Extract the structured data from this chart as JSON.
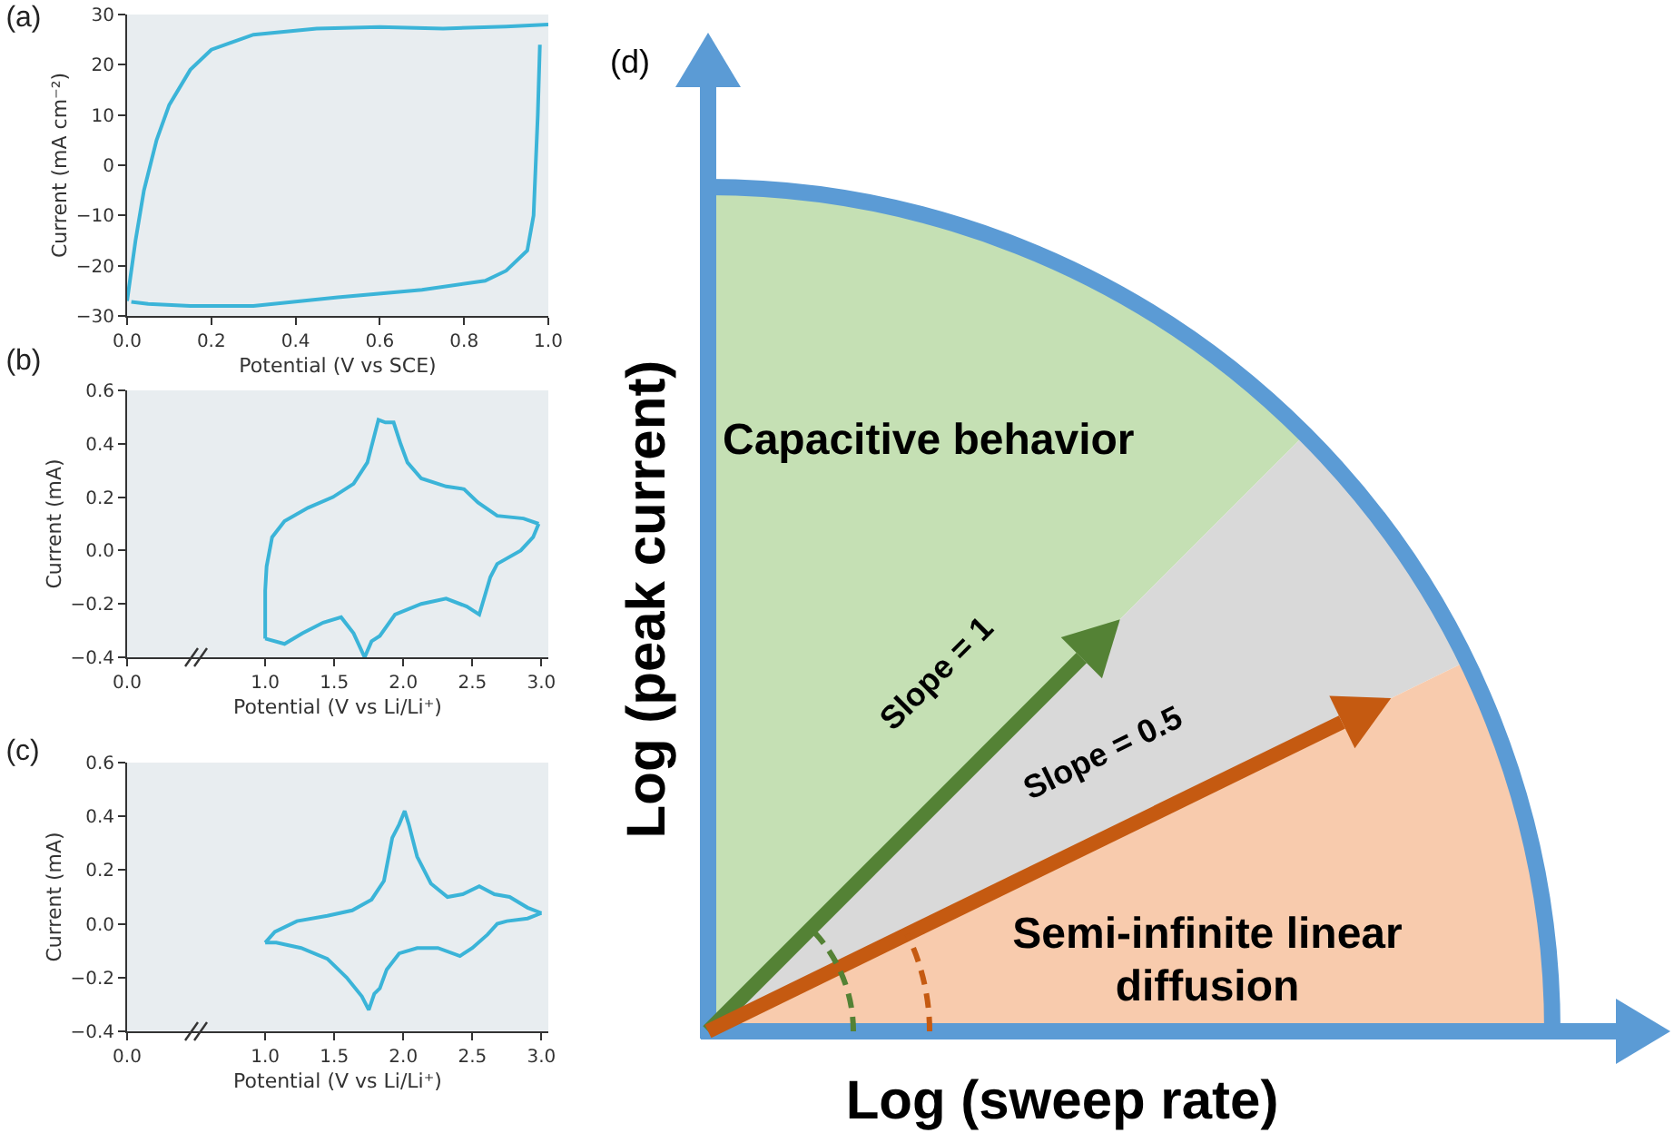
{
  "chart_data": [
    {
      "type": "line",
      "title": "(a)",
      "xlabel": "Potential (V vs SCE)",
      "ylabel": "Current (mA cm⁻²)",
      "grid": false,
      "legend": false,
      "marker": "none",
      "line_style": "solid",
      "xlim": [
        0,
        1
      ],
      "xticks": [
        {
          "value": 0,
          "label": "0.0"
        },
        {
          "value": 0.2,
          "label": "0.2"
        },
        {
          "value": 0.4,
          "label": "0.4"
        },
        {
          "value": 0.6,
          "label": "0.6"
        },
        {
          "value": 0.8,
          "label": "0.8"
        },
        {
          "value": 1,
          "label": "1.0"
        }
      ],
      "ylim": [
        -30,
        30
      ],
      "yticks": [
        {
          "value": -30,
          "label": "−30"
        },
        {
          "value": -20,
          "label": "−20"
        },
        {
          "value": -10,
          "label": "−10"
        },
        0,
        10,
        20,
        30
      ],
      "series": [
        {
          "color": "#3bb4d8",
          "x": [
            0,
            0.02,
            0.04,
            0.07,
            0.1,
            0.15,
            0.2,
            0.3,
            0.45,
            0.6,
            0.75,
            0.9,
            1.0
          ],
          "values": [
            -27,
            -15,
            -5,
            5,
            12,
            19,
            23,
            26,
            27.2,
            27.5,
            27.2,
            27.6,
            28
          ]
        },
        {
          "color": "#3bb4d8",
          "x": [
            0.98,
            0.975,
            0.97,
            0.965,
            0.95,
            0.9,
            0.85,
            0.7,
            0.5,
            0.3,
            0.15,
            0.05,
            0.01
          ],
          "values": [
            24,
            10,
            0,
            -10,
            -17,
            -21,
            -23,
            -24.8,
            -26.3,
            -28,
            -28,
            -27.6,
            -27.2
          ]
        }
      ]
    },
    {
      "type": "line",
      "title": "(b)",
      "xlabel": "Potential (V vs Li/Li⁺)",
      "ylabel": "Current (mA)",
      "grid": false,
      "legend": false,
      "marker": "none",
      "line_style": "solid",
      "xlim": [
        0,
        3.05
      ],
      "xticks": [
        {
          "value": 0,
          "label": "0.0"
        },
        {
          "value": 1,
          "label": "1.0"
        },
        {
          "value": 1.5,
          "label": "1.5"
        },
        {
          "value": 2,
          "label": "2.0"
        },
        {
          "value": 2.5,
          "label": "2.5"
        },
        {
          "value": 3,
          "label": "3.0"
        }
      ],
      "ylim": [
        -0.4,
        0.6
      ],
      "yticks": [
        {
          "value": -0.4,
          "label": "−0.4"
        },
        {
          "value": -0.2,
          "label": "−0.2"
        },
        {
          "value": 0,
          "label": "0.0"
        },
        {
          "value": 0.2,
          "label": "0.2"
        },
        {
          "value": 0.4,
          "label": "0.4"
        },
        {
          "value": 0.6,
          "label": "0.6"
        }
      ],
      "series": [
        {
          "color": "#3bb4d8",
          "x": [
            1.0,
            1.0,
            1.01,
            1.05,
            1.14,
            1.31,
            1.49,
            1.64,
            1.74,
            1.82,
            1.87,
            1.93,
            1.98,
            2.03,
            2.13,
            2.31,
            2.44,
            2.54,
            2.68,
            2.87,
            2.98
          ],
          "values": [
            -0.33,
            -0.15,
            -0.06,
            0.05,
            0.11,
            0.16,
            0.2,
            0.25,
            0.33,
            0.49,
            0.48,
            0.48,
            0.4,
            0.33,
            0.27,
            0.24,
            0.23,
            0.18,
            0.13,
            0.12,
            0.1
          ]
        },
        {
          "color": "#3bb4d8",
          "x": [
            2.98,
            2.94,
            2.85,
            2.68,
            2.63,
            2.55,
            2.46,
            2.31,
            2.13,
            1.94,
            1.83,
            1.77,
            1.72,
            1.64,
            1.55,
            1.42,
            1.27,
            1.14,
            1.0
          ],
          "values": [
            0.1,
            0.05,
            0.0,
            -0.05,
            -0.1,
            -0.24,
            -0.21,
            -0.18,
            -0.2,
            -0.24,
            -0.32,
            -0.34,
            -0.4,
            -0.31,
            -0.25,
            -0.27,
            -0.31,
            -0.35,
            -0.33
          ]
        }
      ]
    },
    {
      "type": "line",
      "title": "(c)",
      "xlabel": "Potential (V vs Li/Li⁺)",
      "ylabel": "Current (mA)",
      "grid": false,
      "legend": false,
      "marker": "none",
      "line_style": "solid",
      "xlim": [
        0,
        3.05
      ],
      "xticks": [
        {
          "value": 0,
          "label": "0.0"
        },
        {
          "value": 1,
          "label": "1.0"
        },
        {
          "value": 1.5,
          "label": "1.5"
        },
        {
          "value": 2,
          "label": "2.0"
        },
        {
          "value": 2.5,
          "label": "2.5"
        },
        {
          "value": 3,
          "label": "3.0"
        }
      ],
      "ylim": [
        -0.4,
        0.6
      ],
      "yticks": [
        {
          "value": -0.4,
          "label": "−0.4"
        },
        {
          "value": -0.2,
          "label": "−0.2"
        },
        {
          "value": 0,
          "label": "0.0"
        },
        {
          "value": 0.2,
          "label": "0.2"
        },
        {
          "value": 0.4,
          "label": "0.4"
        },
        {
          "value": 0.6,
          "label": "0.6"
        }
      ],
      "series": [
        {
          "color": "#3bb4d8",
          "x": [
            1.0,
            1.07,
            1.23,
            1.45,
            1.63,
            1.77,
            1.86,
            1.92,
            1.97,
            2.01,
            2.04,
            2.1,
            2.2,
            2.32,
            2.43,
            2.55,
            2.66,
            2.77,
            2.9,
            3.0
          ],
          "values": [
            -0.07,
            -0.03,
            0.01,
            0.03,
            0.05,
            0.09,
            0.16,
            0.32,
            0.37,
            0.42,
            0.37,
            0.25,
            0.15,
            0.1,
            0.11,
            0.14,
            0.11,
            0.1,
            0.06,
            0.04
          ]
        },
        {
          "color": "#3bb4d8",
          "x": [
            3.0,
            2.9,
            2.75,
            2.68,
            2.61,
            2.5,
            2.41,
            2.25,
            2.1,
            1.97,
            1.88,
            1.83,
            1.79,
            1.75,
            1.7,
            1.59,
            1.45,
            1.26,
            1.08,
            1.0
          ],
          "values": [
            0.04,
            0.02,
            0.01,
            0.0,
            -0.04,
            -0.09,
            -0.12,
            -0.09,
            -0.09,
            -0.11,
            -0.17,
            -0.24,
            -0.26,
            -0.32,
            -0.27,
            -0.2,
            -0.13,
            -0.09,
            -0.07,
            -0.07
          ]
        }
      ]
    },
    {
      "type": "other",
      "title": "(d)",
      "xlabel": "Log (sweep rate)",
      "ylabel": "Log (peak current)",
      "annotations": [
        "Capacitive behavior",
        "Slope = 1",
        "Slope = 0.5",
        "Semi-infinite linear diffusion"
      ]
    }
  ]
}
